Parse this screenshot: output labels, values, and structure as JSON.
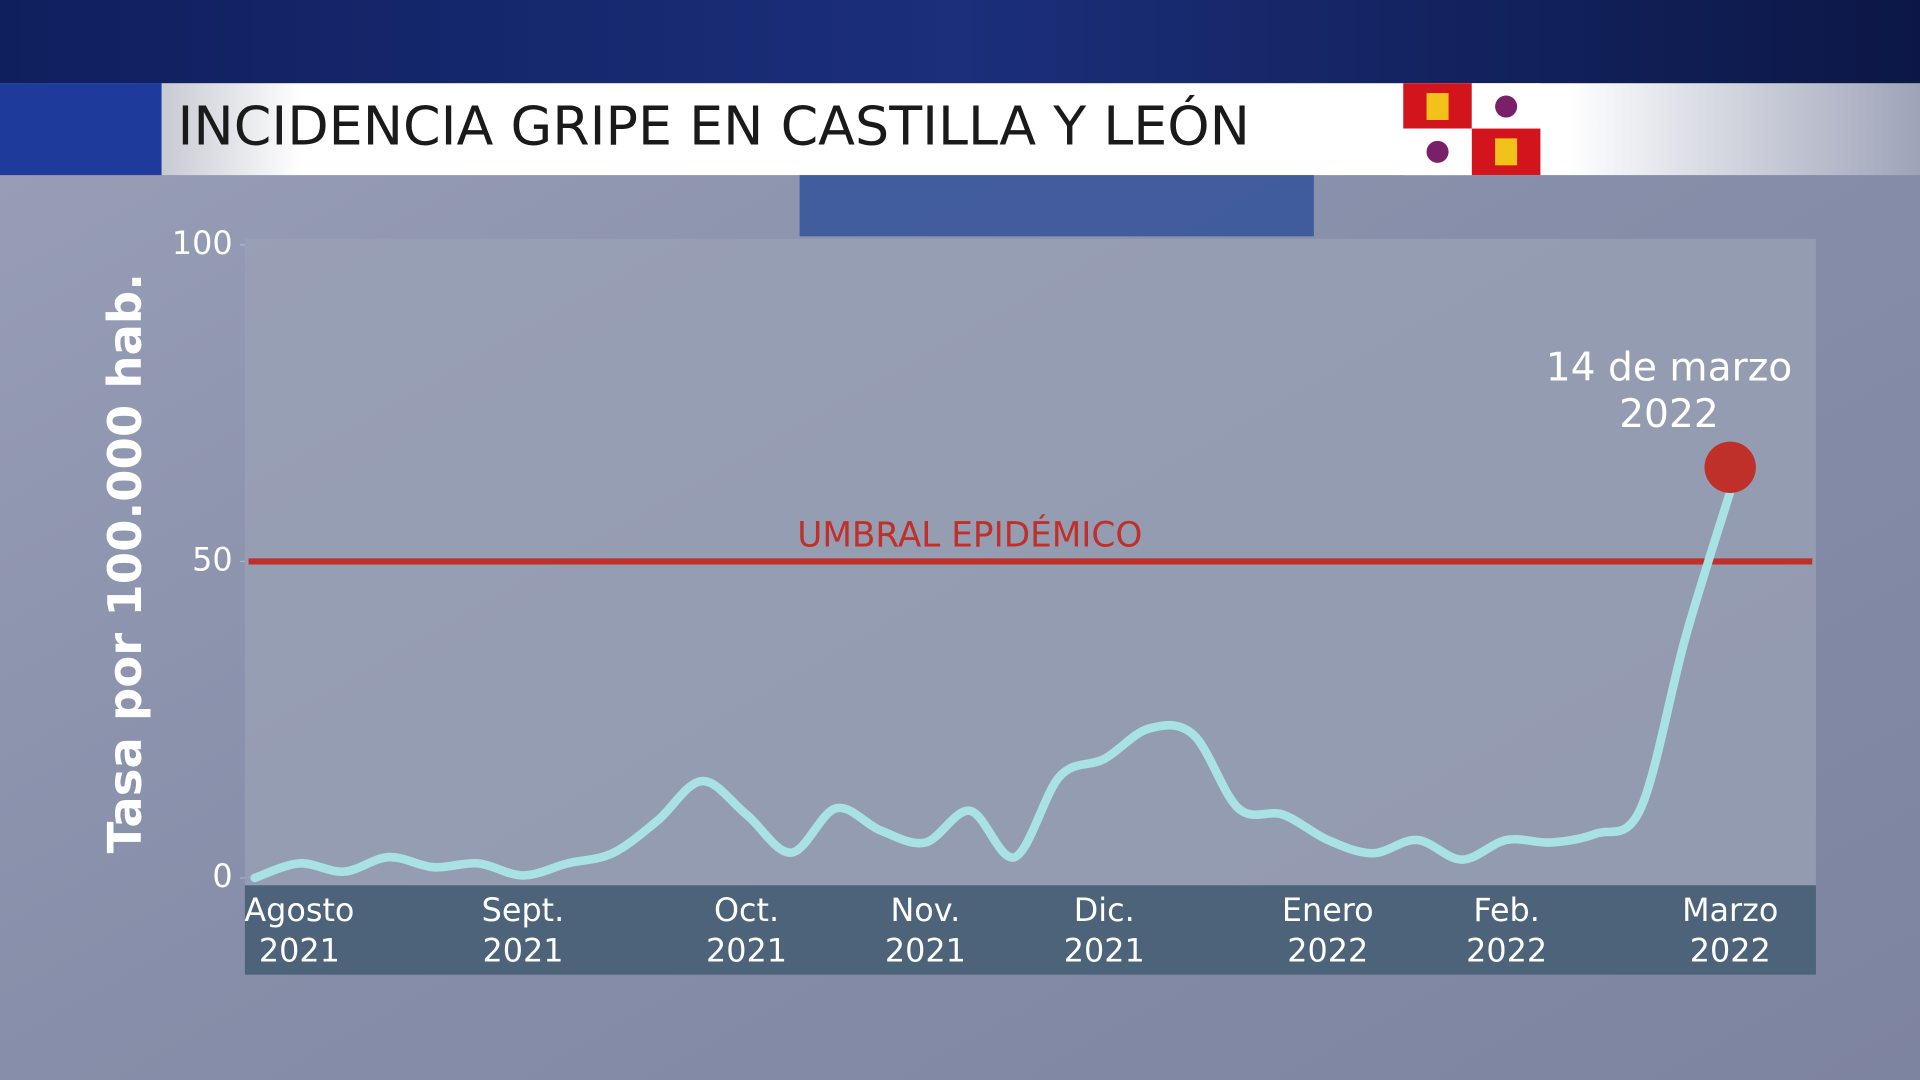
{
  "chart_data": {
    "type": "line",
    "title": "INCIDENCIA GRIPE EN CASTILLA Y LEÓN",
    "y_label": "Tasa por 100.000 hab.",
    "categories": [
      null,
      "Agosto 2021",
      null,
      null,
      null,
      null,
      "Sept. 2021",
      null,
      null,
      null,
      null,
      "Oct. 2021",
      null,
      null,
      null,
      "Nov. 2021",
      null,
      null,
      null,
      "Dic. 2021",
      null,
      null,
      null,
      null,
      "Enero 2022",
      null,
      null,
      null,
      "Feb. 2022",
      null,
      null,
      null,
      null,
      "Marzo 2022"
    ],
    "series": [
      {
        "color": "#a9e2e4",
        "values": [
          0,
          2.3,
          1,
          3.3,
          1.7,
          2.3,
          0.4,
          2.3,
          3.9,
          9,
          15.3,
          10,
          4,
          11,
          7.5,
          5.6,
          10.6,
          3.3,
          16,
          18.8,
          23.6,
          22.6,
          11,
          10,
          6,
          3.9,
          6,
          2.9,
          6,
          5.6,
          7,
          11,
          38,
          61
        ]
      }
    ],
    "ylim": [
      0,
      100
    ],
    "yticks": [
      0,
      50,
      100
    ],
    "threshold": {
      "value": 50,
      "label": "UMBRAL EPIDÉMICO",
      "color": "#c0302a"
    },
    "annotation": {
      "lines": [
        "14 de marzo",
        "2022"
      ],
      "color": "#c0302a"
    }
  }
}
